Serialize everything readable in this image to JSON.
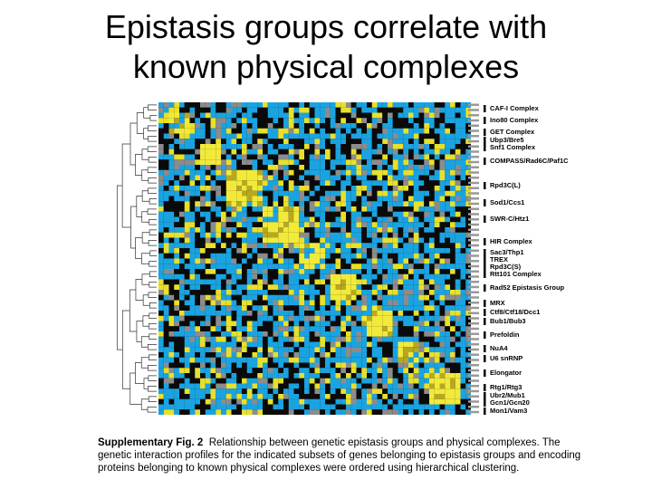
{
  "header": {
    "title_lines": [
      "Epistasis groups correlate with",
      "known physical complexes"
    ]
  },
  "figure": {
    "labels": [
      "CAF-I Complex",
      "Ino80 Complex",
      "GET Complex",
      "Ubp3/Bre5",
      "Snf1 Complex",
      "COMPASS/Rad6C/Paf1C",
      "Rpd3C(L)",
      "Sod1/Ccs1",
      "SWR-C/Htz1",
      "HIR Complex",
      "Sac3/Thp1",
      "TREX",
      "Rpd3C(S)",
      "Rtt101 Complex",
      "Rad52 Epistasis Group",
      "MRX",
      "Ctf8/Ctf18/Dcc1",
      "Bub1/Bub3",
      "Prefoldin",
      "NuA4",
      "U6 snRNP",
      "Elongator",
      "Rtg1/Rtg3",
      "Ubr2/Mub1",
      "Gcn1/Gcn20",
      "Mon1/Vam3"
    ]
  },
  "caption": {
    "label": "Supplementary Fig. 2",
    "text": "Relationship between genetic epistasis groups and physical complexes. The genetic interaction profiles for the indicated subsets of genes belonging to epistasis groups and encoding proteins belonging to known physical complexes were ordered using hierarchical clustering."
  }
}
